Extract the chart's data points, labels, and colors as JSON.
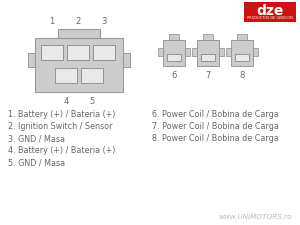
{
  "bg_color": "#ffffff",
  "connector_fill": "#cccccc",
  "connector_edge": "#999999",
  "slot_fill": "#e8e8e8",
  "slot_edge": "#888888",
  "text_color": "#666666",
  "dze_red": "#cc1111",
  "dze_logo_text": "dze",
  "dze_sub_text": "PRODUCTOS DE IGNICION",
  "watermark": "www.UNIMOTORS.ro",
  "left_labels": [
    "1. Battery (+) / Bateria (+)",
    "2. Ignition Switch / Sensor",
    "3. GND / Masa",
    "4. Battery (+) / Bateria (+)",
    "5. GND / Masa"
  ],
  "right_labels": [
    "6. Power Coil / Bobina de Carga",
    "7. Power Coil / Bobina de Carga",
    "8. Power Coil / Bobina de Carga"
  ],
  "pin_top": [
    "1",
    "2",
    "3"
  ],
  "pin_bottom": [
    "4",
    "5"
  ],
  "pin_single": [
    "6",
    "7",
    "8"
  ]
}
